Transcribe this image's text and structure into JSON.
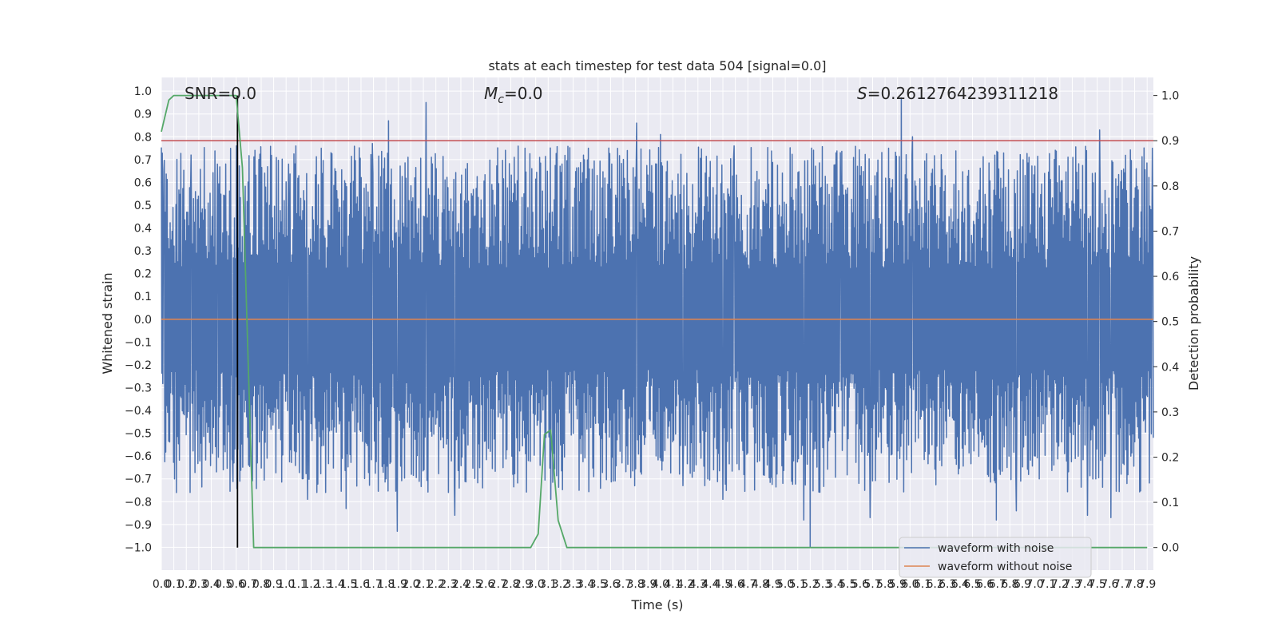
{
  "chart_data": {
    "type": "line",
    "title": "stats at each timestep for test data 504 [signal=0.0]",
    "xlabel": "Time (s)",
    "ylabel_left": "Whitened strain",
    "ylabel_right": "Detection probability",
    "xlim": [
      0.0,
      7.95
    ],
    "ylim_left": [
      -1.1,
      1.06
    ],
    "ylim_right": [
      -0.05,
      1.04
    ],
    "x_ticks": [
      "0.0",
      "0.1",
      "0.2",
      "0.3",
      "0.4",
      "0.5",
      "0.6",
      "0.7",
      "0.8",
      "0.9",
      "1.0",
      "1.1",
      "1.2",
      "1.3",
      "1.4",
      "1.5",
      "1.6",
      "1.7",
      "1.8",
      "1.9",
      "2.0",
      "2.1",
      "2.2",
      "2.3",
      "2.4",
      "2.5",
      "2.6",
      "2.7",
      "2.8",
      "2.9",
      "3.0",
      "3.1",
      "3.2",
      "3.3",
      "3.4",
      "3.5",
      "3.6",
      "3.7",
      "3.8",
      "3.9",
      "4.0",
      "4.1",
      "4.2",
      "4.3",
      "4.4",
      "4.5",
      "4.6",
      "4.7",
      "4.8",
      "4.9",
      "5.0",
      "5.1",
      "5.2",
      "5.3",
      "5.4",
      "5.5",
      "5.6",
      "5.7",
      "5.8",
      "5.9",
      "6.0",
      "6.1",
      "6.2",
      "6.3",
      "6.4",
      "6.5",
      "6.6",
      "6.7",
      "6.8",
      "6.9",
      "7.0",
      "7.1",
      "7.2",
      "7.3",
      "7.4",
      "7.5",
      "7.6",
      "7.7",
      "7.8",
      "7.9"
    ],
    "y_ticks_left": [
      "1.0",
      "0.9",
      "0.8",
      "0.7",
      "0.6",
      "0.5",
      "0.4",
      "0.3",
      "0.2",
      "0.1",
      "0.0",
      "−0.1",
      "−0.2",
      "−0.3",
      "−0.4",
      "−0.5",
      "−0.6",
      "−0.7",
      "−0.8",
      "−0.9",
      "−1.0"
    ],
    "y_ticks_right": [
      "1.0",
      "0.9",
      "0.8",
      "0.7",
      "0.6",
      "0.5",
      "0.4",
      "0.3",
      "0.2",
      "0.1",
      "0.0"
    ],
    "grid": true,
    "legend_position": "lower-right",
    "annotations": {
      "snr": "SNR=0.0",
      "mc_symbol": "M",
      "mc_sub": "c",
      "mc_value": "=0.0",
      "s_symbol": "S",
      "s_value": "=0.2612764239311218"
    },
    "threshold_right": 0.9,
    "marker_x": 0.61,
    "series": [
      {
        "name": "waveform with noise",
        "color": "#4c72b0",
        "axis": "left",
        "kind": "noise",
        "sample_rate": 256,
        "typical_envelope": [
          -0.38,
          0.38
        ],
        "spikes": [
          [
            0.02,
            0.65
          ],
          [
            0.12,
            -0.76
          ],
          [
            0.24,
            0.72
          ],
          [
            0.45,
            0.68
          ],
          [
            0.57,
            -0.62
          ],
          [
            0.61,
            0.97
          ],
          [
            0.63,
            -0.71
          ],
          [
            0.77,
            -0.63
          ],
          [
            1.02,
            0.68
          ],
          [
            1.17,
            -0.79
          ],
          [
            1.28,
            0.75
          ],
          [
            1.48,
            -0.83
          ],
          [
            1.69,
            0.77
          ],
          [
            1.82,
            0.87
          ],
          [
            1.89,
            -0.93
          ],
          [
            2.12,
            0.95
          ],
          [
            2.35,
            -0.86
          ],
          [
            2.94,
            -0.62
          ],
          [
            3.12,
            -0.79
          ],
          [
            3.42,
            0.75
          ],
          [
            3.81,
            0.86
          ],
          [
            4.0,
            0.81
          ],
          [
            4.18,
            -0.73
          ],
          [
            4.5,
            -0.79
          ],
          [
            4.59,
            0.76
          ],
          [
            5.15,
            -0.88
          ],
          [
            5.2,
            -1.0
          ],
          [
            5.44,
            0.73
          ],
          [
            5.68,
            -0.87
          ],
          [
            5.93,
            0.97
          ],
          [
            6.02,
            0.8
          ],
          [
            6.69,
            -0.88
          ],
          [
            6.85,
            -0.84
          ],
          [
            7.42,
            -0.86
          ],
          [
            7.52,
            0.83
          ],
          [
            7.61,
            -0.87
          ],
          [
            7.94,
            0.75
          ]
        ]
      },
      {
        "name": "waveform without noise",
        "color": "#dd8452",
        "axis": "left",
        "kind": "flat",
        "value": 0.0
      },
      {
        "name": "detection probability",
        "color": "#55a868",
        "axis": "right",
        "x": [
          0.0,
          0.06,
          0.1,
          0.2,
          0.3,
          0.4,
          0.5,
          0.6,
          0.65,
          0.68,
          0.74,
          0.8,
          1.0,
          2.0,
          2.9,
          2.96,
          3.02,
          3.07,
          3.12,
          3.18,
          3.25,
          3.3,
          4.0,
          5.0,
          6.0,
          7.0,
          7.9
        ],
        "y": [
          0.92,
          0.99,
          1.0,
          1.0,
          1.0,
          1.0,
          1.0,
          1.0,
          0.84,
          0.56,
          0.0,
          0.0,
          0.0,
          0.0,
          0.0,
          0.0,
          0.03,
          0.25,
          0.26,
          0.06,
          0.0,
          0.0,
          0.0,
          0.0,
          0.0,
          0.0,
          0.0
        ]
      }
    ]
  }
}
